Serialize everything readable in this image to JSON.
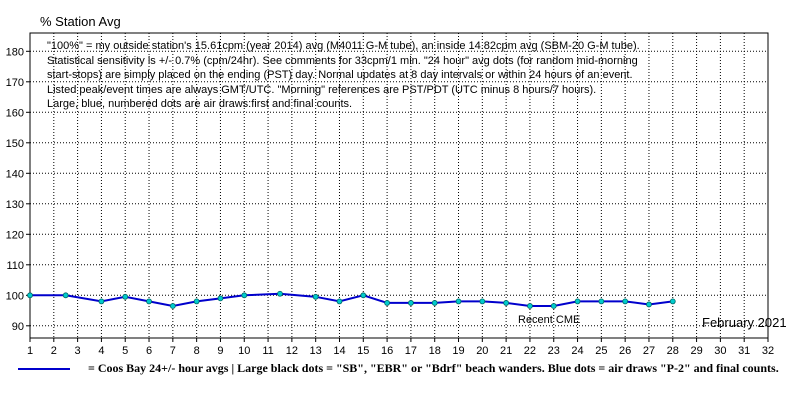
{
  "chart_data": {
    "type": "line",
    "ylabel": "% Station Avg",
    "xlabel": "",
    "month_label": "February 2021",
    "xlim": [
      1,
      32
    ],
    "ylim": [
      86,
      186
    ],
    "x_ticks": [
      1,
      2,
      3,
      4,
      5,
      6,
      7,
      8,
      9,
      10,
      11,
      12,
      13,
      14,
      15,
      16,
      17,
      18,
      19,
      20,
      21,
      22,
      23,
      24,
      25,
      26,
      27,
      28,
      29,
      30,
      31,
      32
    ],
    "y_ticks": [
      90,
      100,
      110,
      120,
      130,
      140,
      150,
      160,
      170,
      180
    ],
    "grid": true,
    "notes": [
      "\"100%\" = my outside station's 15.61cpm (year 2014) avg (M4011 G-M tube), an inside 14.82cpm avg (SBM-20 G-M tube).",
      "Statistical sensitivity is +/- 0.7% (cpm/24hr). See comments for 33cpm/1 min. \"24 hour\" avg dots (for random mid-morning",
      "start-stops) are simply placed on the ending (PST) day. Normal updates at 8 day intervals or within 24 hours of an event.",
      "Listed peak/event times are always GMT/UTC.  \"Morning\" references are PST/PDT (UTC minus 8 hours/7 hours).",
      "Large, blue, numbered dots are air draws:first and final counts."
    ],
    "annotations": [
      {
        "text": "Recent CME",
        "x": 23,
        "y": 92
      }
    ],
    "legend": {
      "text": "= Coos Bay 24+/- hour avgs | Large black dots = \"SB\", \"EBR\" or \"Bdrf\" beach wanders. Blue dots = air draws \"P-2\" and final counts.",
      "placement": "bottom",
      "color": "#0000cc"
    },
    "series": [
      {
        "color": "#0000cc",
        "marker_color": "#00cccc",
        "x": [
          1,
          2.5,
          4,
          5,
          6,
          7,
          8,
          9,
          10,
          11.5,
          13,
          14,
          15,
          16,
          17,
          18,
          19,
          20,
          21,
          22,
          23,
          24,
          25,
          26,
          27,
          28
        ],
        "y": [
          100,
          100,
          98,
          99.5,
          98,
          96.5,
          98,
          99,
          100,
          100.5,
          99.5,
          98,
          100,
          97.5,
          97.5,
          97.5,
          98,
          98,
          97.5,
          96.5,
          96.5,
          98,
          98,
          98,
          97,
          98
        ]
      }
    ]
  }
}
